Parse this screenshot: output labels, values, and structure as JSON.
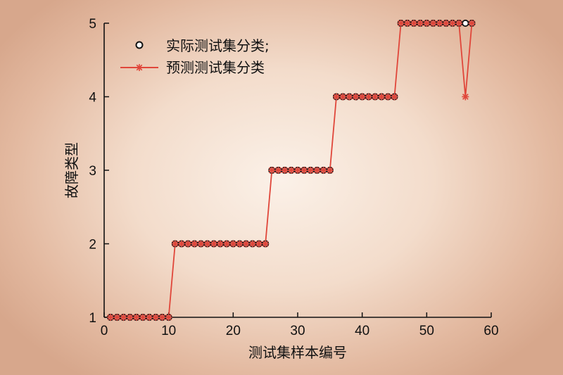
{
  "chart_data": {
    "type": "line",
    "xlabel": "测试集样本编号",
    "ylabel": "故障类型",
    "xlim": [
      0,
      60
    ],
    "ylim": [
      1,
      5
    ],
    "xticks": [
      "0",
      "10",
      "20",
      "30",
      "40",
      "50",
      "60"
    ],
    "yticks": [
      "1",
      "2",
      "3",
      "4",
      "5"
    ],
    "legend_position": "top-left",
    "colors": {
      "actual_marker_edge": "#111111",
      "predicted": "#e0463a"
    },
    "series": [
      {
        "name": "实际测试集分类;",
        "marker": "circle",
        "x": [
          1,
          2,
          3,
          4,
          5,
          6,
          7,
          8,
          9,
          10,
          11,
          12,
          13,
          14,
          15,
          16,
          17,
          18,
          19,
          20,
          21,
          22,
          23,
          24,
          25,
          26,
          27,
          28,
          29,
          30,
          31,
          32,
          33,
          34,
          35,
          36,
          37,
          38,
          39,
          40,
          41,
          42,
          43,
          44,
          45,
          46,
          47,
          48,
          49,
          50,
          51,
          52,
          53,
          54,
          55,
          56,
          57
        ],
        "y": [
          1,
          1,
          1,
          1,
          1,
          1,
          1,
          1,
          1,
          1,
          2,
          2,
          2,
          2,
          2,
          2,
          2,
          2,
          2,
          2,
          2,
          2,
          2,
          2,
          2,
          3,
          3,
          3,
          3,
          3,
          3,
          3,
          3,
          3,
          3,
          4,
          4,
          4,
          4,
          4,
          4,
          4,
          4,
          4,
          4,
          5,
          5,
          5,
          5,
          5,
          5,
          5,
          5,
          5,
          5,
          5,
          5
        ]
      },
      {
        "name": "预测测试集分类",
        "marker": "asterisk-line",
        "x": [
          1,
          2,
          3,
          4,
          5,
          6,
          7,
          8,
          9,
          10,
          11,
          12,
          13,
          14,
          15,
          16,
          17,
          18,
          19,
          20,
          21,
          22,
          23,
          24,
          25,
          26,
          27,
          28,
          29,
          30,
          31,
          32,
          33,
          34,
          35,
          36,
          37,
          38,
          39,
          40,
          41,
          42,
          43,
          44,
          45,
          46,
          47,
          48,
          49,
          50,
          51,
          52,
          53,
          54,
          55,
          56,
          57
        ],
        "y": [
          1,
          1,
          1,
          1,
          1,
          1,
          1,
          1,
          1,
          1,
          2,
          2,
          2,
          2,
          2,
          2,
          2,
          2,
          2,
          2,
          2,
          2,
          2,
          2,
          2,
          3,
          3,
          3,
          3,
          3,
          3,
          3,
          3,
          3,
          3,
          4,
          4,
          4,
          4,
          4,
          4,
          4,
          4,
          4,
          4,
          5,
          5,
          5,
          5,
          5,
          5,
          5,
          5,
          5,
          5,
          4,
          5
        ]
      }
    ]
  }
}
